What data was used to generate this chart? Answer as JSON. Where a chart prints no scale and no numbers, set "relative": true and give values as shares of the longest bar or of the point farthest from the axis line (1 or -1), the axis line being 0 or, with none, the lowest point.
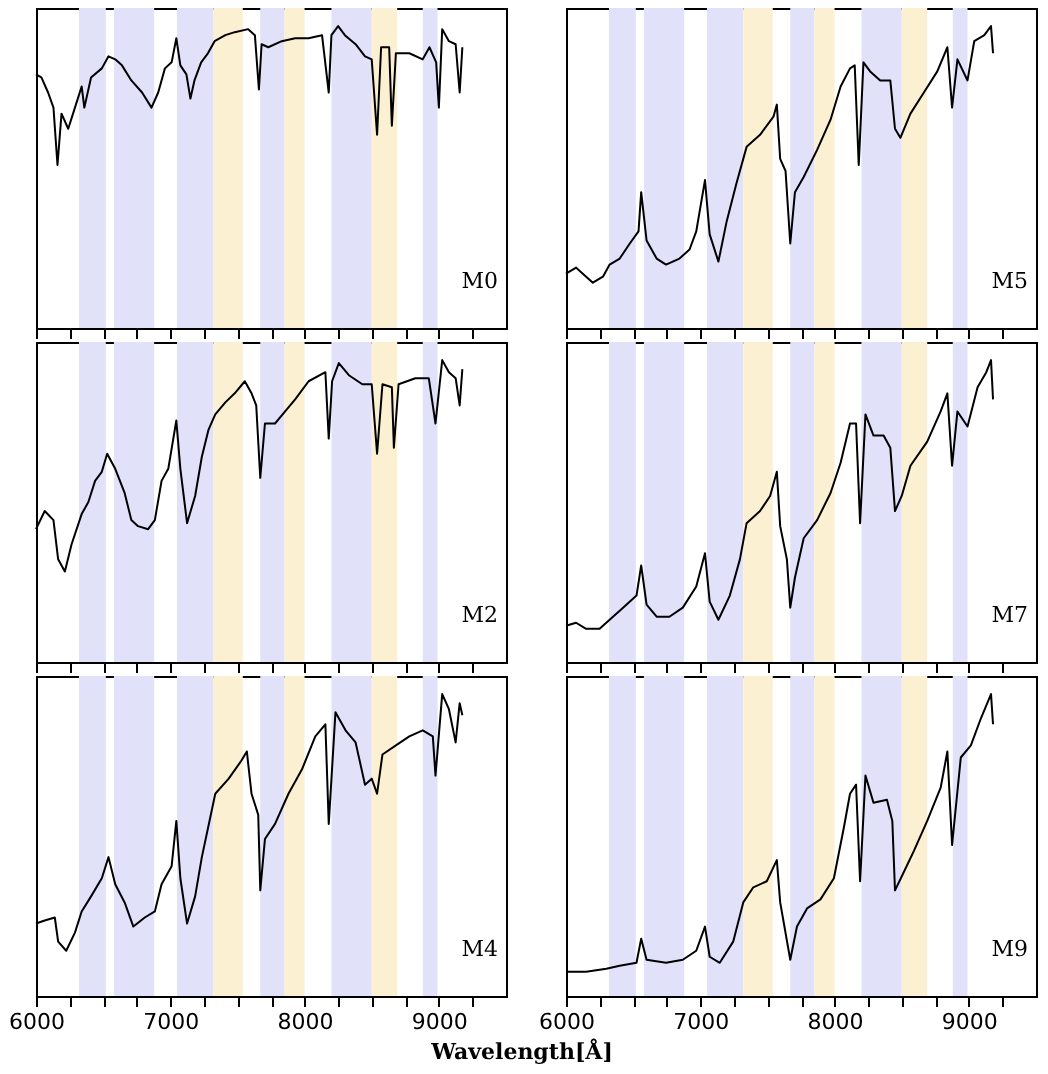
{
  "chart_data": [
    {
      "type": "line",
      "relative": true,
      "tick_labels": false,
      "xlim": [
        6000,
        9500
      ],
      "xticks": [
        6000,
        {
          "value": 6250,
          "label": null
        },
        {
          "value": 6500,
          "label": null
        },
        {
          "value": 6750,
          "label": null
        },
        7000,
        {
          "value": 7250,
          "label": null
        },
        {
          "value": 7500,
          "label": null
        },
        {
          "value": 7750,
          "label": null
        },
        8000,
        {
          "value": 8250,
          "label": null
        },
        {
          "value": 8500,
          "label": null
        },
        {
          "value": 8750,
          "label": null
        },
        9000,
        {
          "value": 9250,
          "label": null
        }
      ],
      "annotations": [
        "M0"
      ],
      "bands": [
        {
          "axis": "x",
          "from": 6320,
          "to": 6520,
          "color": "#e1e1fa"
        },
        {
          "axis": "x",
          "from": 6580,
          "to": 6880,
          "color": "#e1e1fa"
        },
        {
          "axis": "x",
          "from": 7050,
          "to": 7320,
          "color": "#e1e1fa"
        },
        {
          "axis": "x",
          "from": 7320,
          "to": 7540,
          "color": "#fbf0d2"
        },
        {
          "axis": "x",
          "from": 7670,
          "to": 7850,
          "color": "#e1e1fa"
        },
        {
          "axis": "x",
          "from": 7850,
          "to": 8000,
          "color": "#fbf0d2"
        },
        {
          "axis": "x",
          "from": 8200,
          "to": 8500,
          "color": "#e1e1fa"
        },
        {
          "axis": "x",
          "from": 8500,
          "to": 8690,
          "color": "#fbf0d2"
        },
        {
          "axis": "x",
          "from": 8880,
          "to": 8990,
          "color": "#e1e1fa"
        }
      ],
      "x": [
        6000,
        6040,
        6090,
        6130,
        6160,
        6190,
        6240,
        6290,
        6340,
        6360,
        6410,
        6490,
        6540,
        6590,
        6640,
        6710,
        6790,
        6860,
        6910,
        6960,
        7010,
        7045,
        7075,
        7120,
        7150,
        7180,
        7230,
        7280,
        7330,
        7410,
        7480,
        7580,
        7630,
        7660,
        7680,
        7730,
        7830,
        7930,
        8030,
        8130,
        8180,
        8200,
        8250,
        8300,
        8380,
        8450,
        8500,
        8540,
        8570,
        8630,
        8650,
        8680,
        8780,
        8880,
        8930,
        8980,
        9000,
        9025,
        9075,
        9125,
        9155,
        9175
      ],
      "series": [
        {
          "color": "#000000",
          "values": [
            0.84,
            0.83,
            0.78,
            0.73,
            0.54,
            0.71,
            0.66,
            0.73,
            0.8,
            0.73,
            0.83,
            0.86,
            0.9,
            0.89,
            0.87,
            0.82,
            0.78,
            0.73,
            0.78,
            0.86,
            0.88,
            0.96,
            0.87,
            0.84,
            0.76,
            0.82,
            0.88,
            0.91,
            0.95,
            0.97,
            0.98,
            0.99,
            0.97,
            0.79,
            0.94,
            0.93,
            0.95,
            0.96,
            0.96,
            0.97,
            0.78,
            0.97,
            1.0,
            0.97,
            0.94,
            0.9,
            0.89,
            0.64,
            0.93,
            0.93,
            0.67,
            0.91,
            0.91,
            0.89,
            0.93,
            0.88,
            0.73,
            0.99,
            0.95,
            0.94,
            0.78,
            0.93
          ]
        }
      ]
    },
    {
      "type": "line",
      "relative": true,
      "tick_labels": false,
      "xlim": [
        6000,
        9500
      ],
      "xticks": [
        6000,
        {
          "value": 6250,
          "label": null
        },
        {
          "value": 6500,
          "label": null
        },
        {
          "value": 6750,
          "label": null
        },
        7000,
        {
          "value": 7250,
          "label": null
        },
        {
          "value": 7500,
          "label": null
        },
        {
          "value": 7750,
          "label": null
        },
        8000,
        {
          "value": 8250,
          "label": null
        },
        {
          "value": 8500,
          "label": null
        },
        {
          "value": 8750,
          "label": null
        },
        9000,
        {
          "value": 9250,
          "label": null
        }
      ],
      "annotations": [
        "M5"
      ],
      "bands": [
        {
          "axis": "x",
          "from": 6320,
          "to": 6520,
          "color": "#e1e1fa"
        },
        {
          "axis": "x",
          "from": 6580,
          "to": 6880,
          "color": "#e1e1fa"
        },
        {
          "axis": "x",
          "from": 7050,
          "to": 7320,
          "color": "#e1e1fa"
        },
        {
          "axis": "x",
          "from": 7320,
          "to": 7540,
          "color": "#fbf0d2"
        },
        {
          "axis": "x",
          "from": 7670,
          "to": 7850,
          "color": "#e1e1fa"
        },
        {
          "axis": "x",
          "from": 7850,
          "to": 8000,
          "color": "#fbf0d2"
        },
        {
          "axis": "x",
          "from": 8200,
          "to": 8500,
          "color": "#e1e1fa"
        },
        {
          "axis": "x",
          "from": 8500,
          "to": 8690,
          "color": "#fbf0d2"
        },
        {
          "axis": "x",
          "from": 8880,
          "to": 8990,
          "color": "#e1e1fa"
        }
      ],
      "x": [
        6000,
        6075,
        6125,
        6200,
        6275,
        6325,
        6400,
        6475,
        6540,
        6560,
        6600,
        6675,
        6745,
        6845,
        6920,
        6970,
        7035,
        7070,
        7135,
        7195,
        7270,
        7345,
        7445,
        7545,
        7570,
        7595,
        7635,
        7670,
        7705,
        7770,
        7870,
        7970,
        8045,
        8115,
        8150,
        8180,
        8215,
        8265,
        8340,
        8415,
        8450,
        8490,
        8565,
        8665,
        8765,
        8840,
        8875,
        8915,
        8990,
        9040,
        9115,
        9165,
        9180
      ],
      "series": [
        {
          "color": "#000000",
          "values": [
            0.18,
            0.2,
            0.18,
            0.15,
            0.17,
            0.21,
            0.23,
            0.28,
            0.32,
            0.45,
            0.29,
            0.23,
            0.21,
            0.23,
            0.26,
            0.32,
            0.49,
            0.31,
            0.22,
            0.35,
            0.48,
            0.6,
            0.64,
            0.7,
            0.74,
            0.56,
            0.52,
            0.28,
            0.45,
            0.5,
            0.59,
            0.69,
            0.8,
            0.86,
            0.87,
            0.54,
            0.88,
            0.85,
            0.82,
            0.82,
            0.66,
            0.63,
            0.71,
            0.78,
            0.85,
            0.93,
            0.73,
            0.89,
            0.82,
            0.95,
            0.97,
            1.0,
            0.91
          ]
        }
      ]
    },
    {
      "type": "line",
      "relative": true,
      "tick_labels": false,
      "xlim": [
        6000,
        9500
      ],
      "xticks": [
        6000,
        {
          "value": 6250,
          "label": null
        },
        {
          "value": 6500,
          "label": null
        },
        {
          "value": 6750,
          "label": null
        },
        7000,
        {
          "value": 7250,
          "label": null
        },
        {
          "value": 7500,
          "label": null
        },
        {
          "value": 7750,
          "label": null
        },
        8000,
        {
          "value": 8250,
          "label": null
        },
        {
          "value": 8500,
          "label": null
        },
        {
          "value": 8750,
          "label": null
        },
        9000,
        {
          "value": 9250,
          "label": null
        }
      ],
      "annotations": [
        "M2"
      ],
      "bands": [
        {
          "axis": "x",
          "from": 6320,
          "to": 6520,
          "color": "#e1e1fa"
        },
        {
          "axis": "x",
          "from": 6580,
          "to": 6880,
          "color": "#e1e1fa"
        },
        {
          "axis": "x",
          "from": 7050,
          "to": 7320,
          "color": "#e1e1fa"
        },
        {
          "axis": "x",
          "from": 7320,
          "to": 7540,
          "color": "#fbf0d2"
        },
        {
          "axis": "x",
          "from": 7670,
          "to": 7850,
          "color": "#e1e1fa"
        },
        {
          "axis": "x",
          "from": 7850,
          "to": 8000,
          "color": "#fbf0d2"
        },
        {
          "axis": "x",
          "from": 8200,
          "to": 8500,
          "color": "#e1e1fa"
        },
        {
          "axis": "x",
          "from": 8500,
          "to": 8690,
          "color": "#fbf0d2"
        },
        {
          "axis": "x",
          "from": 8880,
          "to": 8990,
          "color": "#e1e1fa"
        }
      ],
      "x": [
        6000,
        6065,
        6130,
        6165,
        6215,
        6265,
        6340,
        6390,
        6440,
        6490,
        6530,
        6590,
        6660,
        6710,
        6760,
        6835,
        6885,
        6935,
        6985,
        7045,
        7075,
        7125,
        7185,
        7235,
        7285,
        7335,
        7410,
        7480,
        7555,
        7605,
        7640,
        7670,
        7705,
        7780,
        7855,
        7930,
        8030,
        8155,
        8180,
        8205,
        8255,
        8330,
        8430,
        8500,
        8540,
        8580,
        8650,
        8665,
        8700,
        8825,
        8925,
        8975,
        9025,
        9075,
        9125,
        9155,
        9175
      ],
      "series": [
        {
          "color": "#000000",
          "values": [
            0.44,
            0.5,
            0.47,
            0.34,
            0.3,
            0.39,
            0.49,
            0.53,
            0.6,
            0.63,
            0.69,
            0.64,
            0.56,
            0.47,
            0.45,
            0.44,
            0.47,
            0.6,
            0.64,
            0.8,
            0.64,
            0.46,
            0.55,
            0.68,
            0.77,
            0.82,
            0.86,
            0.89,
            0.93,
            0.89,
            0.85,
            0.61,
            0.79,
            0.79,
            0.83,
            0.87,
            0.93,
            0.96,
            0.74,
            0.93,
            0.99,
            0.95,
            0.92,
            0.92,
            0.69,
            0.92,
            0.91,
            0.71,
            0.92,
            0.94,
            0.94,
            0.79,
            1.0,
            0.96,
            0.94,
            0.85,
            0.97
          ]
        }
      ]
    },
    {
      "type": "line",
      "relative": true,
      "tick_labels": false,
      "xlim": [
        6000,
        9500
      ],
      "xticks": [
        6000,
        {
          "value": 6250,
          "label": null
        },
        {
          "value": 6500,
          "label": null
        },
        {
          "value": 6750,
          "label": null
        },
        7000,
        {
          "value": 7250,
          "label": null
        },
        {
          "value": 7500,
          "label": null
        },
        {
          "value": 7750,
          "label": null
        },
        8000,
        {
          "value": 8250,
          "label": null
        },
        {
          "value": 8500,
          "label": null
        },
        {
          "value": 8750,
          "label": null
        },
        9000,
        {
          "value": 9250,
          "label": null
        }
      ],
      "annotations": [
        "M7"
      ],
      "bands": [
        {
          "axis": "x",
          "from": 6320,
          "to": 6520,
          "color": "#e1e1fa"
        },
        {
          "axis": "x",
          "from": 6580,
          "to": 6880,
          "color": "#e1e1fa"
        },
        {
          "axis": "x",
          "from": 7050,
          "to": 7320,
          "color": "#e1e1fa"
        },
        {
          "axis": "x",
          "from": 7320,
          "to": 7540,
          "color": "#fbf0d2"
        },
        {
          "axis": "x",
          "from": 7670,
          "to": 7850,
          "color": "#e1e1fa"
        },
        {
          "axis": "x",
          "from": 7850,
          "to": 8000,
          "color": "#fbf0d2"
        },
        {
          "axis": "x",
          "from": 8200,
          "to": 8500,
          "color": "#e1e1fa"
        },
        {
          "axis": "x",
          "from": 8500,
          "to": 8690,
          "color": "#fbf0d2"
        },
        {
          "axis": "x",
          "from": 8880,
          "to": 8990,
          "color": "#e1e1fa"
        }
      ],
      "x": [
        6000,
        6075,
        6150,
        6250,
        6325,
        6425,
        6525,
        6560,
        6600,
        6675,
        6770,
        6870,
        6970,
        7035,
        7070,
        7135,
        7220,
        7295,
        7345,
        7445,
        7520,
        7570,
        7595,
        7645,
        7670,
        7705,
        7770,
        7870,
        7970,
        8045,
        8115,
        8160,
        8190,
        8230,
        8290,
        8365,
        8415,
        8450,
        8500,
        8565,
        8690,
        8790,
        8840,
        8875,
        8915,
        8990,
        9065,
        9130,
        9165,
        9180
      ],
      "series": [
        {
          "color": "#000000",
          "values": [
            0.12,
            0.13,
            0.11,
            0.11,
            0.14,
            0.18,
            0.22,
            0.32,
            0.19,
            0.15,
            0.15,
            0.18,
            0.25,
            0.36,
            0.2,
            0.14,
            0.22,
            0.34,
            0.46,
            0.5,
            0.55,
            0.63,
            0.45,
            0.34,
            0.18,
            0.28,
            0.41,
            0.47,
            0.56,
            0.66,
            0.79,
            0.79,
            0.46,
            0.82,
            0.75,
            0.75,
            0.71,
            0.5,
            0.55,
            0.65,
            0.73,
            0.83,
            0.89,
            0.65,
            0.83,
            0.78,
            0.91,
            0.96,
            1.0,
            0.87
          ]
        }
      ]
    },
    {
      "type": "line",
      "relative": true,
      "tick_labels": "x",
      "xlim": [
        6000,
        9500
      ],
      "xticks": [
        6000,
        {
          "value": 6250,
          "label": null
        },
        {
          "value": 6500,
          "label": null
        },
        {
          "value": 6750,
          "label": null
        },
        7000,
        {
          "value": 7250,
          "label": null
        },
        {
          "value": 7500,
          "label": null
        },
        {
          "value": 7750,
          "label": null
        },
        8000,
        {
          "value": 8250,
          "label": null
        },
        {
          "value": 8500,
          "label": null
        },
        {
          "value": 8750,
          "label": null
        },
        9000,
        {
          "value": 9250,
          "label": null
        }
      ],
      "annotations": [
        "M4"
      ],
      "xlabel": "Wavelength[Å]",
      "bands": [
        {
          "axis": "x",
          "from": 6320,
          "to": 6520,
          "color": "#e1e1fa"
        },
        {
          "axis": "x",
          "from": 6580,
          "to": 6880,
          "color": "#e1e1fa"
        },
        {
          "axis": "x",
          "from": 7050,
          "to": 7320,
          "color": "#e1e1fa"
        },
        {
          "axis": "x",
          "from": 7320,
          "to": 7540,
          "color": "#fbf0d2"
        },
        {
          "axis": "x",
          "from": 7670,
          "to": 7850,
          "color": "#e1e1fa"
        },
        {
          "axis": "x",
          "from": 7850,
          "to": 8000,
          "color": "#fbf0d2"
        },
        {
          "axis": "x",
          "from": 8200,
          "to": 8500,
          "color": "#e1e1fa"
        },
        {
          "axis": "x",
          "from": 8500,
          "to": 8690,
          "color": "#fbf0d2"
        },
        {
          "axis": "x",
          "from": 8880,
          "to": 8990,
          "color": "#e1e1fa"
        }
      ],
      "x": [
        6000,
        6065,
        6140,
        6165,
        6225,
        6290,
        6340,
        6410,
        6490,
        6540,
        6590,
        6660,
        6725,
        6810,
        6885,
        6935,
        7010,
        7045,
        7075,
        7125,
        7185,
        7235,
        7335,
        7435,
        7530,
        7570,
        7605,
        7655,
        7670,
        7705,
        7780,
        7880,
        7980,
        8080,
        8155,
        8180,
        8230,
        8305,
        8380,
        8450,
        8500,
        8540,
        8580,
        8680,
        8780,
        8880,
        8955,
        8975,
        9025,
        9075,
        9125,
        9155,
        9175
      ],
      "series": [
        {
          "color": "#000000",
          "values": [
            0.24,
            0.25,
            0.26,
            0.18,
            0.15,
            0.21,
            0.28,
            0.33,
            0.39,
            0.46,
            0.37,
            0.31,
            0.23,
            0.26,
            0.28,
            0.37,
            0.43,
            0.58,
            0.39,
            0.24,
            0.33,
            0.46,
            0.67,
            0.72,
            0.78,
            0.81,
            0.67,
            0.6,
            0.35,
            0.52,
            0.57,
            0.67,
            0.75,
            0.86,
            0.9,
            0.57,
            0.94,
            0.88,
            0.84,
            0.7,
            0.72,
            0.67,
            0.8,
            0.83,
            0.86,
            0.88,
            0.86,
            0.73,
            1.0,
            0.95,
            0.84,
            0.97,
            0.93
          ]
        }
      ]
    },
    {
      "type": "line",
      "relative": true,
      "tick_labels": "x",
      "xlim": [
        6000,
        9500
      ],
      "xticks": [
        6000,
        {
          "value": 6250,
          "label": null
        },
        {
          "value": 6500,
          "label": null
        },
        {
          "value": 6750,
          "label": null
        },
        7000,
        {
          "value": 7250,
          "label": null
        },
        {
          "value": 7500,
          "label": null
        },
        {
          "value": 7750,
          "label": null
        },
        8000,
        {
          "value": 8250,
          "label": null
        },
        {
          "value": 8500,
          "label": null
        },
        {
          "value": 8750,
          "label": null
        },
        9000,
        {
          "value": 9250,
          "label": null
        }
      ],
      "annotations": [
        "M9"
      ],
      "bands": [
        {
          "axis": "x",
          "from": 6320,
          "to": 6520,
          "color": "#e1e1fa"
        },
        {
          "axis": "x",
          "from": 6580,
          "to": 6880,
          "color": "#e1e1fa"
        },
        {
          "axis": "x",
          "from": 7050,
          "to": 7320,
          "color": "#e1e1fa"
        },
        {
          "axis": "x",
          "from": 7320,
          "to": 7540,
          "color": "#fbf0d2"
        },
        {
          "axis": "x",
          "from": 7670,
          "to": 7850,
          "color": "#e1e1fa"
        },
        {
          "axis": "x",
          "from": 7850,
          "to": 8000,
          "color": "#fbf0d2"
        },
        {
          "axis": "x",
          "from": 8200,
          "to": 8500,
          "color": "#e1e1fa"
        },
        {
          "axis": "x",
          "from": 8500,
          "to": 8690,
          "color": "#fbf0d2"
        },
        {
          "axis": "x",
          "from": 8880,
          "to": 8990,
          "color": "#e1e1fa"
        }
      ],
      "x": [
        6000,
        6150,
        6300,
        6400,
        6525,
        6560,
        6600,
        6745,
        6870,
        6970,
        7035,
        7070,
        7145,
        7245,
        7320,
        7395,
        7495,
        7570,
        7595,
        7670,
        7720,
        7795,
        7895,
        7995,
        8070,
        8115,
        8160,
        8190,
        8230,
        8290,
        8390,
        8430,
        8450,
        8515,
        8590,
        8690,
        8790,
        8840,
        8875,
        8940,
        9015,
        9090,
        9165,
        9180
      ],
      "series": [
        {
          "color": "#000000",
          "values": [
            0.08,
            0.08,
            0.09,
            0.1,
            0.11,
            0.19,
            0.12,
            0.11,
            0.12,
            0.15,
            0.23,
            0.13,
            0.11,
            0.18,
            0.31,
            0.36,
            0.38,
            0.45,
            0.31,
            0.12,
            0.23,
            0.29,
            0.32,
            0.39,
            0.56,
            0.67,
            0.7,
            0.38,
            0.73,
            0.64,
            0.65,
            0.58,
            0.35,
            0.41,
            0.48,
            0.58,
            0.69,
            0.81,
            0.5,
            0.79,
            0.83,
            0.92,
            1.0,
            0.9
          ]
        }
      ]
    }
  ]
}
